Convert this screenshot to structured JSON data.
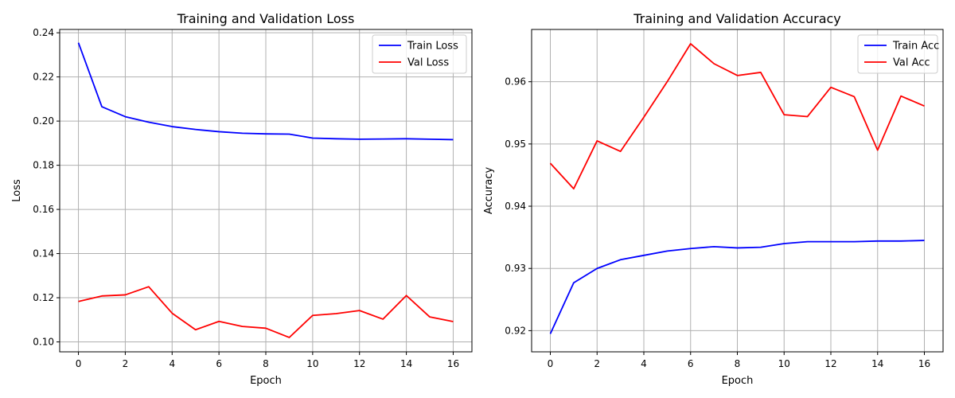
{
  "chart_data": [
    {
      "type": "line",
      "title": "Training and Validation Loss",
      "xlabel": "Epoch",
      "ylabel": "Loss",
      "x": [
        0,
        1,
        2,
        3,
        4,
        5,
        6,
        7,
        8,
        9,
        10,
        11,
        12,
        13,
        14,
        15,
        16
      ],
      "xlim": [
        -0.8,
        16.8
      ],
      "ylim": [
        0.0955,
        0.2415
      ],
      "xticks": [
        0,
        2,
        4,
        6,
        8,
        10,
        12,
        14,
        16
      ],
      "yticks": [
        0.1,
        0.12,
        0.14,
        0.16,
        0.18,
        0.2,
        0.22,
        0.24
      ],
      "ytick_labels": [
        "0.10",
        "0.12",
        "0.14",
        "0.16",
        "0.18",
        "0.20",
        "0.22",
        "0.24"
      ],
      "grid": true,
      "legend": "top-right",
      "series": [
        {
          "name": "Train Loss",
          "color": "#0000ff",
          "values": [
            0.2355,
            0.2065,
            0.202,
            0.1995,
            0.1975,
            0.1962,
            0.1952,
            0.1945,
            0.1942,
            0.1941,
            0.1923,
            0.192,
            0.1918,
            0.1919,
            0.192,
            0.1918,
            0.1916
          ]
        },
        {
          "name": "Val Loss",
          "color": "#ff0000",
          "values": [
            0.1183,
            0.1208,
            0.1213,
            0.125,
            0.113,
            0.1055,
            0.1093,
            0.107,
            0.1062,
            0.102,
            0.112,
            0.1128,
            0.1142,
            0.1103,
            0.121,
            0.1113,
            0.1092
          ]
        }
      ]
    },
    {
      "type": "line",
      "title": "Training and Validation Accuracy",
      "xlabel": "Epoch",
      "ylabel": "Accuracy",
      "x": [
        0,
        1,
        2,
        3,
        4,
        5,
        6,
        7,
        8,
        9,
        10,
        11,
        12,
        13,
        14,
        15,
        16
      ],
      "xlim": [
        -0.8,
        16.8
      ],
      "ylim": [
        0.9166,
        0.9684
      ],
      "xticks": [
        0,
        2,
        4,
        6,
        8,
        10,
        12,
        14,
        16
      ],
      "yticks": [
        0.92,
        0.93,
        0.94,
        0.95,
        0.96
      ],
      "ytick_labels": [
        "0.92",
        "0.93",
        "0.94",
        "0.95",
        "0.96"
      ],
      "grid": true,
      "legend": "top-right",
      "series": [
        {
          "name": "Train Acc",
          "color": "#0000ff",
          "values": [
            0.9195,
            0.9277,
            0.93,
            0.9314,
            0.9321,
            0.9328,
            0.9332,
            0.9335,
            0.9333,
            0.9334,
            0.934,
            0.9343,
            0.9343,
            0.9343,
            0.9344,
            0.9344,
            0.9345
          ]
        },
        {
          "name": "Val Acc",
          "color": "#ff0000",
          "values": [
            0.9469,
            0.9428,
            0.9505,
            0.9488,
            0.9543,
            0.96,
            0.9661,
            0.9629,
            0.961,
            0.9615,
            0.9547,
            0.9544,
            0.9591,
            0.9576,
            0.949,
            0.9577,
            0.9561
          ]
        }
      ]
    }
  ]
}
